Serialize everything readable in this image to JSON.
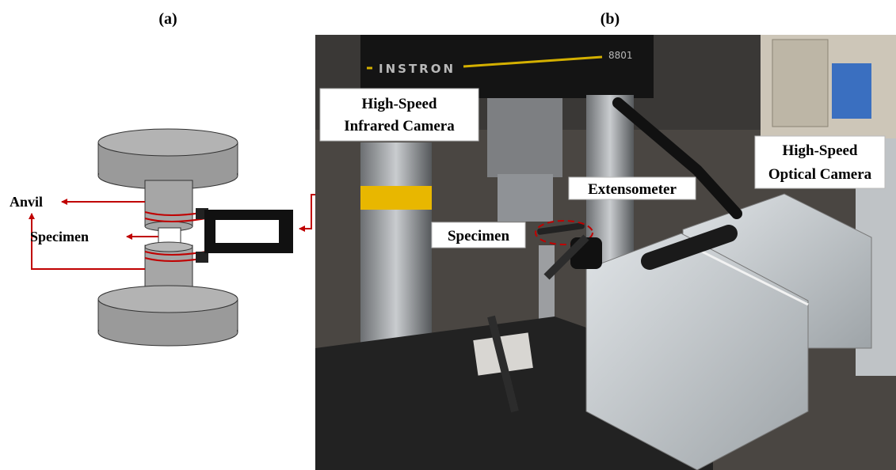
{
  "panels": [
    {
      "label": "(a)",
      "annotations": [
        {
          "text": "Anvil"
        },
        {
          "text": "Specimen"
        }
      ]
    },
    {
      "label": "(b)",
      "machine": {
        "brand": "INSTRON",
        "model": "8801"
      },
      "callouts": [
        {
          "lines": [
            "High-Speed",
            "Infrared Camera"
          ]
        },
        {
          "lines": [
            "Extensometer"
          ]
        },
        {
          "lines": [
            "High-Speed",
            "Optical Camera"
          ]
        },
        {
          "lines": [
            "Specimen"
          ]
        }
      ]
    }
  ]
}
